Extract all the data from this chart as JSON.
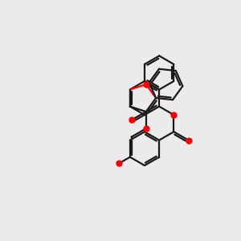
{
  "bg": "#ebebeb",
  "bc": "#1a1a1a",
  "oc": "#ff0000",
  "lw": 1.6,
  "doff": 2.5,
  "S": 22
}
